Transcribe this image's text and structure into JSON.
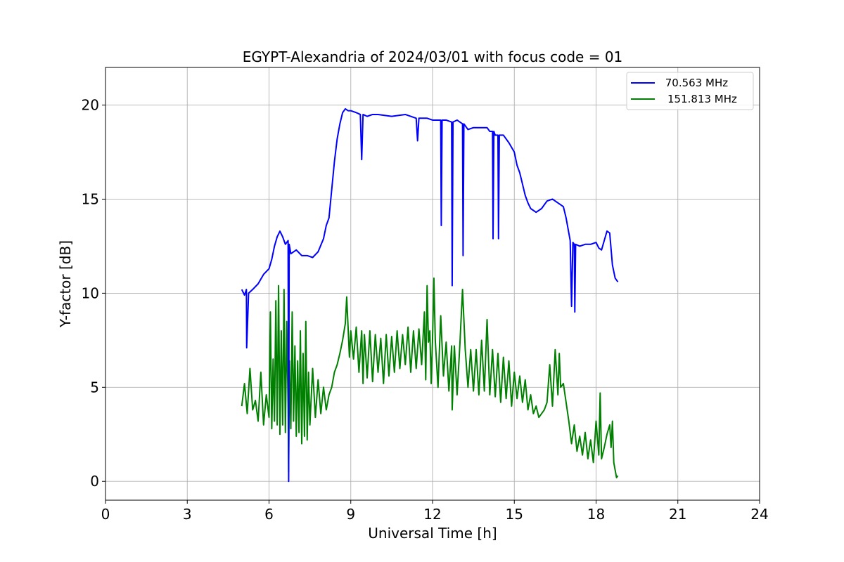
{
  "chart_data": {
    "type": "line",
    "title": "EGYPT-Alexandria of 2024/03/01 with focus code = 01",
    "xlabel": "Universal Time [h]",
    "ylabel": "Y-factor [dB]",
    "xlim": [
      0,
      24
    ],
    "ylim": [
      -1,
      22
    ],
    "xticks": [
      0,
      3,
      6,
      9,
      12,
      15,
      18,
      21,
      24
    ],
    "yticks": [
      0,
      5,
      10,
      15,
      20
    ],
    "xtick_labels": [
      "0",
      "3",
      "6",
      "9",
      "12",
      "15",
      "18",
      "21",
      "24"
    ],
    "ytick_labels": [
      "0",
      "5",
      "10",
      "15",
      "20"
    ],
    "grid": true,
    "legend_position": "top-right",
    "series": [
      {
        "name": " 70.563 MHz",
        "color": "#0000ff",
        "x": [
          5.0,
          5.1,
          5.17,
          5.18,
          5.25,
          5.4,
          5.6,
          5.8,
          6.0,
          6.1,
          6.2,
          6.3,
          6.4,
          6.5,
          6.6,
          6.7,
          6.72,
          6.74,
          6.8,
          7.0,
          7.2,
          7.4,
          7.6,
          7.8,
          8.0,
          8.1,
          8.2,
          8.3,
          8.4,
          8.5,
          8.6,
          8.7,
          8.8,
          8.9,
          9.0,
          9.2,
          9.35,
          9.4,
          9.45,
          9.6,
          9.8,
          10.0,
          10.5,
          11.0,
          11.4,
          11.45,
          11.5,
          11.8,
          12.0,
          12.3,
          12.32,
          12.35,
          12.5,
          12.7,
          12.72,
          12.75,
          12.9,
          13.1,
          13.12,
          13.15,
          13.3,
          13.5,
          13.8,
          14.0,
          14.1,
          14.2,
          14.22,
          14.25,
          14.3,
          14.4,
          14.42,
          14.45,
          14.6,
          14.8,
          15.0,
          15.1,
          15.2,
          15.3,
          15.4,
          15.5,
          15.6,
          15.8,
          16.0,
          16.2,
          16.4,
          16.6,
          16.8,
          16.9,
          17.0,
          17.05,
          17.1,
          17.15,
          17.2,
          17.22,
          17.25,
          17.4,
          17.6,
          17.8,
          18.0,
          18.1,
          18.2,
          18.3,
          18.4,
          18.5,
          18.6,
          18.7,
          18.8
        ],
        "y": [
          10.2,
          9.9,
          10.2,
          7.1,
          10.0,
          10.2,
          10.5,
          11.0,
          11.3,
          11.8,
          12.5,
          13.0,
          13.3,
          13.0,
          12.6,
          12.8,
          0.0,
          12.6,
          12.1,
          12.3,
          12.0,
          12.0,
          11.9,
          12.2,
          12.9,
          13.6,
          14.0,
          15.5,
          17.0,
          18.2,
          19.0,
          19.6,
          19.8,
          19.7,
          19.7,
          19.6,
          19.5,
          17.1,
          19.5,
          19.4,
          19.5,
          19.5,
          19.4,
          19.5,
          19.3,
          18.1,
          19.3,
          19.3,
          19.2,
          19.2,
          13.6,
          19.2,
          19.2,
          19.1,
          10.4,
          19.1,
          19.2,
          19.0,
          12.0,
          19.0,
          18.7,
          18.8,
          18.8,
          18.8,
          18.6,
          18.6,
          12.9,
          18.6,
          18.4,
          18.4,
          12.9,
          18.4,
          18.4,
          18.0,
          17.5,
          16.8,
          16.4,
          15.8,
          15.2,
          14.8,
          14.5,
          14.3,
          14.5,
          14.9,
          15.0,
          14.8,
          14.6,
          14.0,
          13.2,
          12.8,
          9.3,
          12.7,
          12.6,
          9.0,
          12.6,
          12.5,
          12.6,
          12.6,
          12.7,
          12.4,
          12.3,
          12.8,
          13.3,
          13.2,
          11.5,
          10.8,
          10.6
        ]
      },
      {
        "name": "151.813 MHz",
        "color": "#008000",
        "x": [
          5.0,
          5.1,
          5.2,
          5.3,
          5.4,
          5.5,
          5.6,
          5.7,
          5.8,
          5.9,
          6.0,
          6.05,
          6.1,
          6.15,
          6.2,
          6.25,
          6.3,
          6.35,
          6.4,
          6.45,
          6.5,
          6.55,
          6.6,
          6.65,
          6.7,
          6.72,
          6.75,
          6.8,
          6.85,
          6.9,
          6.95,
          7.0,
          7.05,
          7.1,
          7.15,
          7.2,
          7.25,
          7.3,
          7.35,
          7.4,
          7.45,
          7.5,
          7.6,
          7.7,
          7.8,
          7.9,
          8.0,
          8.1,
          8.2,
          8.3,
          8.4,
          8.5,
          8.6,
          8.7,
          8.8,
          8.85,
          8.9,
          8.95,
          9.0,
          9.1,
          9.2,
          9.3,
          9.4,
          9.45,
          9.5,
          9.6,
          9.7,
          9.8,
          9.9,
          10.0,
          10.1,
          10.2,
          10.3,
          10.4,
          10.5,
          10.6,
          10.7,
          10.8,
          10.9,
          11.0,
          11.1,
          11.2,
          11.3,
          11.4,
          11.5,
          11.6,
          11.7,
          11.75,
          11.8,
          11.85,
          11.9,
          11.95,
          12.0,
          12.05,
          12.1,
          12.2,
          12.3,
          12.4,
          12.5,
          12.6,
          12.7,
          12.72,
          12.8,
          12.9,
          13.0,
          13.1,
          13.2,
          13.3,
          13.4,
          13.5,
          13.6,
          13.7,
          13.8,
          13.9,
          14.0,
          14.1,
          14.2,
          14.3,
          14.4,
          14.5,
          14.6,
          14.7,
          14.8,
          14.9,
          15.0,
          15.1,
          15.2,
          15.3,
          15.4,
          15.5,
          15.6,
          15.7,
          15.8,
          15.9,
          16.0,
          16.1,
          16.2,
          16.3,
          16.4,
          16.5,
          16.6,
          16.65,
          16.7,
          16.8,
          16.9,
          17.0,
          17.1,
          17.2,
          17.3,
          17.4,
          17.5,
          17.6,
          17.7,
          17.8,
          17.9,
          18.0,
          18.1,
          18.15,
          18.2,
          18.3,
          18.4,
          18.5,
          18.55,
          18.6,
          18.65,
          18.7,
          18.75,
          18.8
        ],
        "y": [
          4.0,
          5.2,
          3.6,
          6.0,
          3.8,
          4.3,
          3.2,
          5.8,
          3.0,
          4.6,
          3.4,
          9.0,
          2.8,
          6.5,
          3.2,
          9.6,
          3.0,
          10.4,
          2.5,
          8.0,
          3.0,
          10.2,
          2.6,
          8.5,
          4.0,
          0.5,
          6.4,
          2.8,
          9.0,
          3.2,
          7.2,
          2.4,
          6.4,
          2.6,
          8.0,
          2.0,
          6.8,
          2.4,
          8.5,
          2.2,
          5.8,
          3.0,
          6.0,
          3.4,
          5.4,
          3.6,
          5.0,
          3.8,
          4.6,
          5.0,
          5.8,
          6.2,
          6.8,
          7.5,
          8.4,
          9.8,
          8.2,
          6.6,
          8.0,
          6.5,
          8.2,
          5.8,
          8.0,
          5.2,
          7.8,
          5.5,
          8.0,
          5.3,
          7.8,
          5.8,
          7.6,
          5.2,
          7.8,
          5.6,
          7.7,
          5.8,
          8.0,
          6.0,
          7.8,
          6.2,
          8.2,
          5.8,
          8.0,
          6.0,
          8.1,
          6.2,
          9.0,
          5.4,
          10.4,
          7.4,
          8.0,
          5.2,
          7.6,
          10.8,
          7.5,
          5.0,
          8.8,
          5.6,
          7.4,
          4.8,
          7.2,
          3.8,
          7.2,
          4.6,
          7.2,
          10.2,
          7.0,
          5.0,
          7.0,
          4.8,
          7.0,
          4.6,
          7.5,
          4.8,
          8.6,
          4.6,
          7.0,
          4.5,
          6.8,
          4.2,
          6.6,
          4.4,
          6.4,
          4.0,
          5.8,
          4.4,
          5.6,
          4.2,
          5.4,
          3.8,
          4.6,
          3.6,
          4.0,
          3.4,
          3.6,
          3.8,
          4.2,
          6.2,
          4.0,
          7.0,
          4.6,
          6.8,
          5.0,
          5.2,
          4.2,
          3.2,
          2.0,
          3.0,
          1.6,
          2.4,
          1.4,
          2.6,
          1.2,
          2.2,
          1.0,
          3.2,
          1.4,
          4.7,
          1.2,
          1.8,
          2.5,
          3.0,
          1.8,
          3.2,
          1.0,
          0.6,
          0.2,
          0.3
        ]
      }
    ]
  }
}
